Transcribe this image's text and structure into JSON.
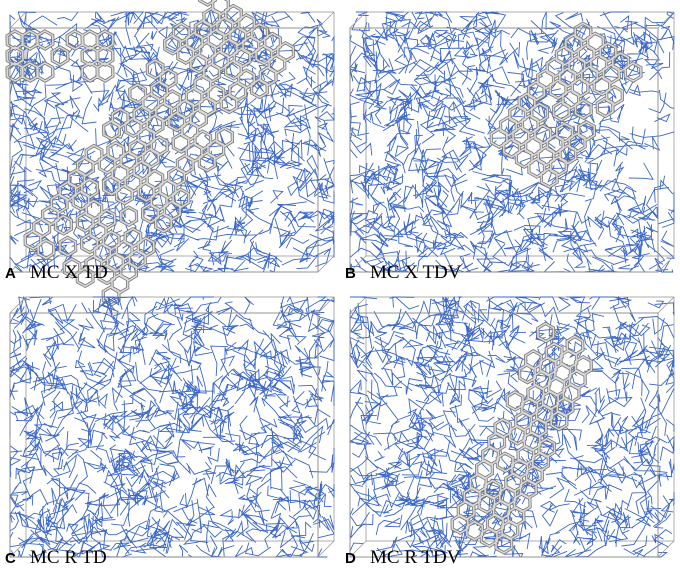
{
  "panels": [
    {
      "letter": "A",
      "label": "MC X TD"
    },
    {
      "letter": "B",
      "label": "MC X TDV"
    },
    {
      "letter": "C",
      "label": "MC R TD"
    },
    {
      "letter": "D",
      "label": "MC R TDV"
    }
  ]
}
